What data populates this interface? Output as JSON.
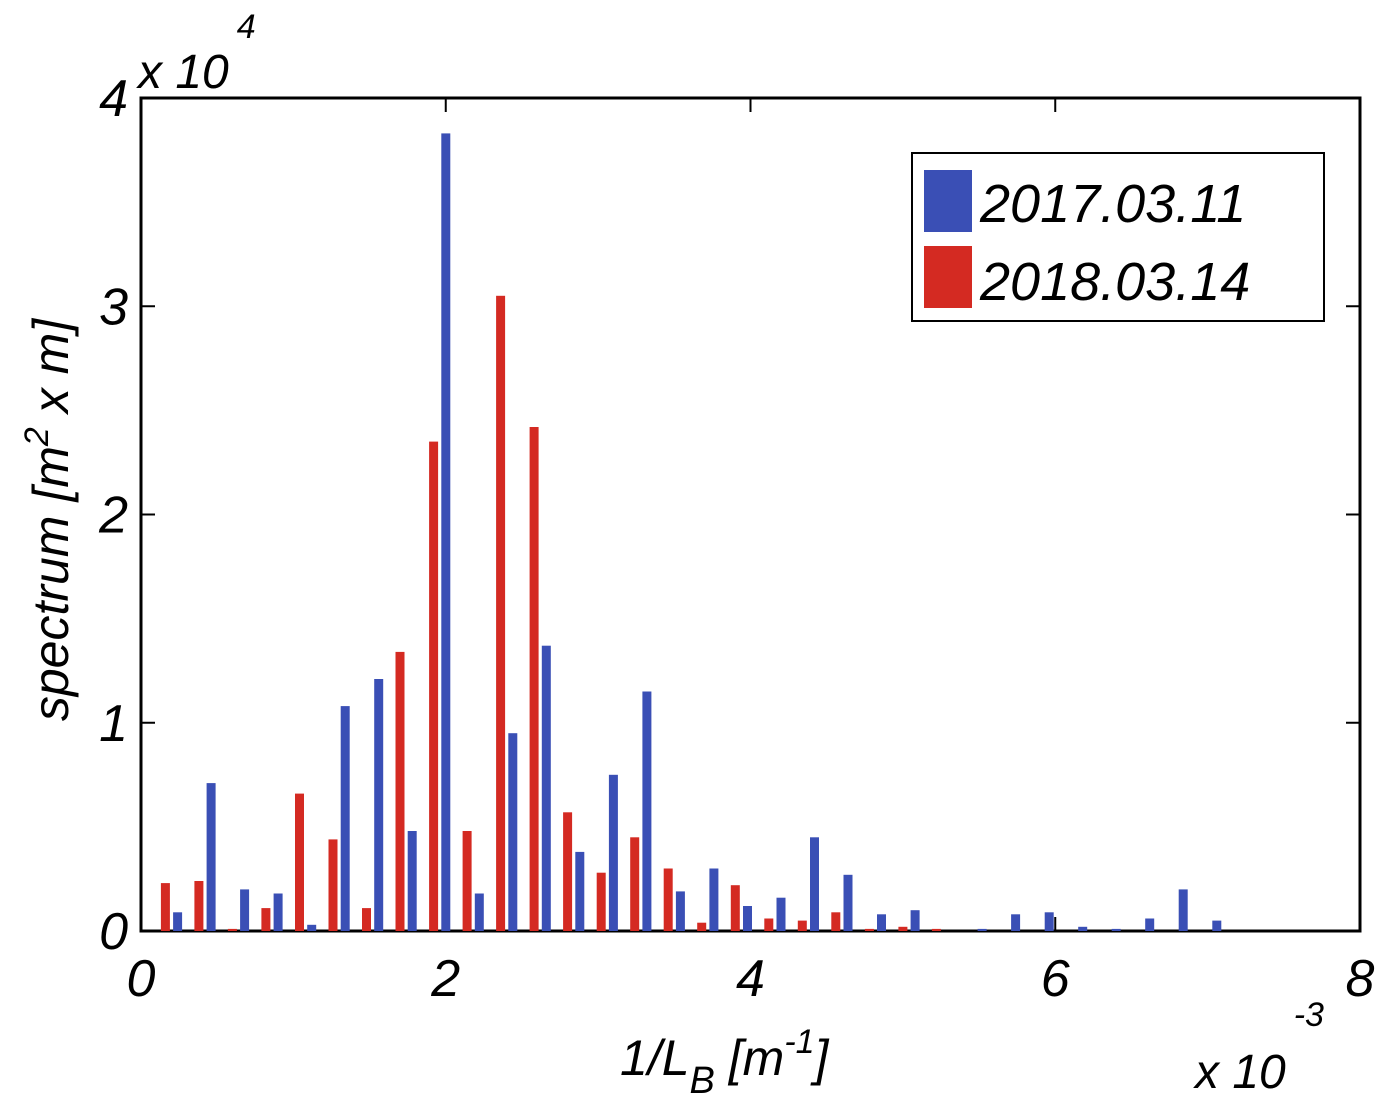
{
  "chart_data": {
    "type": "bar",
    "xlabel": {
      "base": "1/L",
      "sub": "B",
      "unit_open": " [m",
      "unit_sup": "-1",
      "unit_close": "]"
    },
    "ylabel": {
      "pre": "spectrum [m",
      "sup": "2",
      "post": " x m]"
    },
    "x_multiplier": {
      "base": "x 10",
      "exp": "-3"
    },
    "y_multiplier": {
      "base": "x 10",
      "exp": "4"
    },
    "xlim": [
      0,
      8
    ],
    "ylim": [
      0,
      4
    ],
    "x_ticks": [
      {
        "value": 0,
        "label": "0"
      },
      {
        "value": 2,
        "label": "2"
      },
      {
        "value": 4,
        "label": "4"
      },
      {
        "value": 6,
        "label": "6"
      },
      {
        "value": 8,
        "label": "8"
      }
    ],
    "y_ticks": [
      {
        "value": 0,
        "label": "0"
      },
      {
        "value": 1,
        "label": "1"
      },
      {
        "value": 2,
        "label": "2"
      },
      {
        "value": 3,
        "label": "3"
      },
      {
        "value": 4,
        "label": "4"
      }
    ],
    "grid": false,
    "legend_position": "top-right",
    "series": [
      {
        "name": "2017.03.11",
        "color": "#3a4fb5",
        "points": [
          [
            0.24,
            0.09
          ],
          [
            0.46,
            0.71
          ],
          [
            0.68,
            0.2
          ],
          [
            0.9,
            0.18
          ],
          [
            1.12,
            0.03
          ],
          [
            1.34,
            1.08
          ],
          [
            1.56,
            1.21
          ],
          [
            1.78,
            0.48
          ],
          [
            2.0,
            3.83
          ],
          [
            2.22,
            0.18
          ],
          [
            2.44,
            0.95
          ],
          [
            2.66,
            1.37
          ],
          [
            2.88,
            0.38
          ],
          [
            3.1,
            0.75
          ],
          [
            3.32,
            1.15
          ],
          [
            3.54,
            0.19
          ],
          [
            3.76,
            0.3
          ],
          [
            3.98,
            0.12
          ],
          [
            4.2,
            0.16
          ],
          [
            4.42,
            0.45
          ],
          [
            4.64,
            0.27
          ],
          [
            4.86,
            0.08
          ],
          [
            5.08,
            0.1
          ],
          [
            5.52,
            0.01
          ],
          [
            5.74,
            0.08
          ],
          [
            5.96,
            0.09
          ],
          [
            6.18,
            0.02
          ],
          [
            6.4,
            0.01
          ],
          [
            6.62,
            0.06
          ],
          [
            6.84,
            0.2
          ],
          [
            7.06,
            0.05
          ]
        ]
      },
      {
        "name": "2018.03.14",
        "color": "#d42a22",
        "points": [
          [
            0.16,
            0.23
          ],
          [
            0.38,
            0.24
          ],
          [
            0.6,
            0.01
          ],
          [
            0.82,
            0.11
          ],
          [
            1.04,
            0.66
          ],
          [
            1.26,
            0.44
          ],
          [
            1.48,
            0.11
          ],
          [
            1.7,
            1.34
          ],
          [
            1.92,
            2.35
          ],
          [
            2.14,
            0.48
          ],
          [
            2.36,
            3.05
          ],
          [
            2.58,
            2.42
          ],
          [
            2.8,
            0.57
          ],
          [
            3.02,
            0.28
          ],
          [
            3.24,
            0.45
          ],
          [
            3.46,
            0.3
          ],
          [
            3.68,
            0.04
          ],
          [
            3.9,
            0.22
          ],
          [
            4.12,
            0.06
          ],
          [
            4.34,
            0.05
          ],
          [
            4.56,
            0.09
          ],
          [
            4.78,
            0.01
          ],
          [
            5.0,
            0.02
          ],
          [
            5.22,
            0.01
          ]
        ]
      }
    ]
  }
}
